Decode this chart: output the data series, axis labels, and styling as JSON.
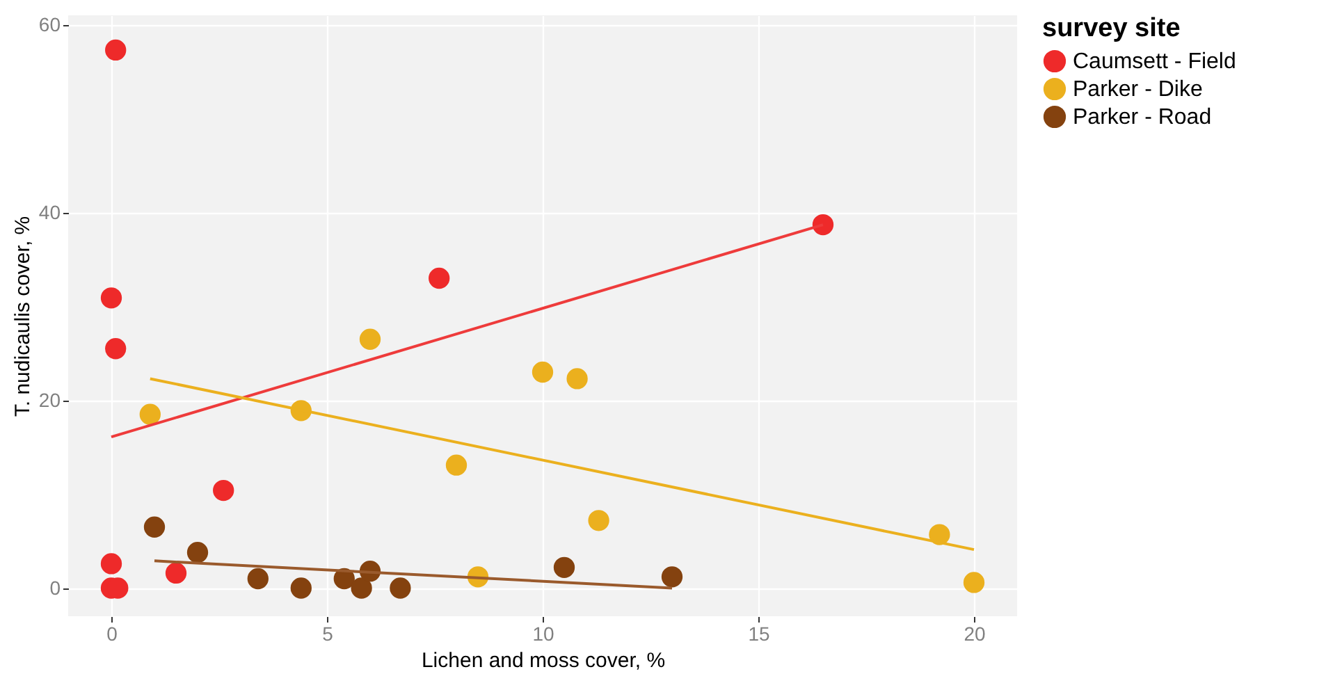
{
  "chart_data": {
    "type": "scatter",
    "xlabel": "Lichen and moss cover, %",
    "ylabel": "T. nudicaulis cover, %",
    "legend_title": "survey site",
    "xlim": [
      -1,
      21
    ],
    "ylim": [
      -3,
      61
    ],
    "xticks": [
      0,
      5,
      10,
      15,
      20
    ],
    "yticks": [
      0,
      20,
      40,
      60
    ],
    "grid": true,
    "legend": "right",
    "marker": "circle",
    "series": [
      {
        "name": "Caumsett - Field",
        "color": "#ee2a2a",
        "x": [
          0.1,
          0,
          0.1,
          0,
          0,
          0.15,
          1.5,
          2.6,
          7.6,
          16.5
        ],
        "values": [
          57.3,
          30.9,
          25.5,
          2.6,
          0,
          0,
          1.6,
          10.4,
          33.0,
          38.7
        ]
      },
      {
        "name": "Parker - Dike",
        "color": "#ebb01e",
        "x": [
          0.9,
          4.4,
          6.0,
          8.0,
          8.5,
          10.0,
          10.8,
          11.3,
          19.2,
          20
        ],
        "values": [
          18.5,
          18.9,
          26.5,
          13.1,
          1.2,
          23.0,
          22.3,
          7.2,
          5.7,
          0.6
        ]
      },
      {
        "name": "Parker - Road",
        "color": "#84420f",
        "x": [
          1.0,
          2.0,
          3.4,
          4.4,
          5.4,
          5.8,
          6.0,
          6.7,
          10.5,
          13.0
        ],
        "values": [
          6.5,
          3.8,
          1.0,
          0,
          1.0,
          0,
          1.8,
          0,
          2.2,
          1.2
        ]
      },
      {
        "type": "line",
        "marker": "none",
        "color": "#ee3b3b",
        "x": [
          0,
          16.5
        ],
        "values": [
          16.1,
          38.7
        ]
      },
      {
        "type": "line",
        "marker": "none",
        "color": "#ebb01e",
        "x": [
          0.9,
          20
        ],
        "values": [
          22.3,
          4.1
        ]
      },
      {
        "type": "line",
        "marker": "none",
        "color": "#9a5a2c",
        "x": [
          1.0,
          13.0
        ],
        "values": [
          2.9,
          0
        ]
      }
    ]
  }
}
